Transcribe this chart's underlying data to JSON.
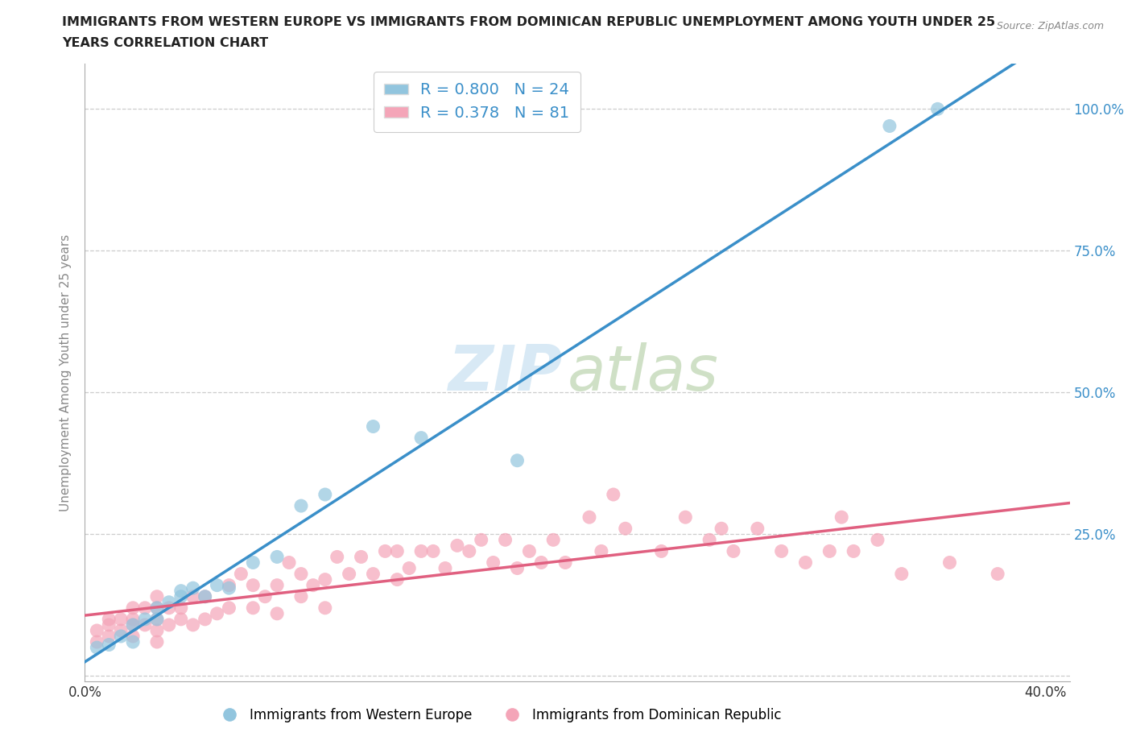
{
  "title_line1": "IMMIGRANTS FROM WESTERN EUROPE VS IMMIGRANTS FROM DOMINICAN REPUBLIC UNEMPLOYMENT AMONG YOUTH UNDER 25",
  "title_line2": "YEARS CORRELATION CHART",
  "source": "Source: ZipAtlas.com",
  "ylabel": "Unemployment Among Youth under 25 years",
  "legend_label1": "Immigrants from Western Europe",
  "legend_label2": "Immigrants from Dominican Republic",
  "R1": 0.8,
  "N1": 24,
  "R2": 0.378,
  "N2": 81,
  "xlim": [
    0.0,
    0.41
  ],
  "ylim": [
    -0.01,
    1.08
  ],
  "ytick_positions": [
    0.0,
    0.25,
    0.5,
    0.75,
    1.0
  ],
  "ytick_labels_right": [
    "",
    "25.0%",
    "50.0%",
    "75.0%",
    "100.0%"
  ],
  "color_blue": "#92c5de",
  "color_pink": "#f4a5b8",
  "color_blue_line": "#3a8fc9",
  "color_pink_line": "#e06080",
  "blue_scatter_x": [
    0.005,
    0.01,
    0.015,
    0.02,
    0.02,
    0.025,
    0.03,
    0.03,
    0.035,
    0.04,
    0.04,
    0.045,
    0.05,
    0.055,
    0.06,
    0.07,
    0.08,
    0.09,
    0.1,
    0.12,
    0.14,
    0.18,
    0.335,
    0.355
  ],
  "blue_scatter_y": [
    0.05,
    0.055,
    0.07,
    0.06,
    0.09,
    0.1,
    0.1,
    0.12,
    0.13,
    0.14,
    0.15,
    0.155,
    0.14,
    0.16,
    0.155,
    0.2,
    0.21,
    0.3,
    0.32,
    0.44,
    0.42,
    0.38,
    0.97,
    1.0
  ],
  "pink_scatter_x": [
    0.005,
    0.005,
    0.01,
    0.01,
    0.01,
    0.015,
    0.015,
    0.02,
    0.02,
    0.02,
    0.02,
    0.025,
    0.025,
    0.03,
    0.03,
    0.03,
    0.03,
    0.03,
    0.035,
    0.035,
    0.04,
    0.04,
    0.045,
    0.045,
    0.05,
    0.05,
    0.055,
    0.06,
    0.06,
    0.065,
    0.07,
    0.07,
    0.075,
    0.08,
    0.08,
    0.085,
    0.09,
    0.09,
    0.095,
    0.1,
    0.1,
    0.105,
    0.11,
    0.115,
    0.12,
    0.125,
    0.13,
    0.13,
    0.135,
    0.14,
    0.145,
    0.15,
    0.155,
    0.16,
    0.165,
    0.17,
    0.175,
    0.18,
    0.185,
    0.19,
    0.195,
    0.2,
    0.21,
    0.215,
    0.22,
    0.225,
    0.24,
    0.25,
    0.26,
    0.265,
    0.27,
    0.28,
    0.29,
    0.3,
    0.31,
    0.315,
    0.32,
    0.33,
    0.34,
    0.36,
    0.38
  ],
  "pink_scatter_y": [
    0.06,
    0.08,
    0.07,
    0.09,
    0.1,
    0.08,
    0.1,
    0.07,
    0.09,
    0.1,
    0.12,
    0.09,
    0.12,
    0.06,
    0.08,
    0.1,
    0.12,
    0.14,
    0.09,
    0.12,
    0.1,
    0.12,
    0.09,
    0.14,
    0.1,
    0.14,
    0.11,
    0.12,
    0.16,
    0.18,
    0.12,
    0.16,
    0.14,
    0.11,
    0.16,
    0.2,
    0.14,
    0.18,
    0.16,
    0.12,
    0.17,
    0.21,
    0.18,
    0.21,
    0.18,
    0.22,
    0.17,
    0.22,
    0.19,
    0.22,
    0.22,
    0.19,
    0.23,
    0.22,
    0.24,
    0.2,
    0.24,
    0.19,
    0.22,
    0.2,
    0.24,
    0.2,
    0.28,
    0.22,
    0.32,
    0.26,
    0.22,
    0.28,
    0.24,
    0.26,
    0.22,
    0.26,
    0.22,
    0.2,
    0.22,
    0.28,
    0.22,
    0.24,
    0.18,
    0.2,
    0.18
  ]
}
